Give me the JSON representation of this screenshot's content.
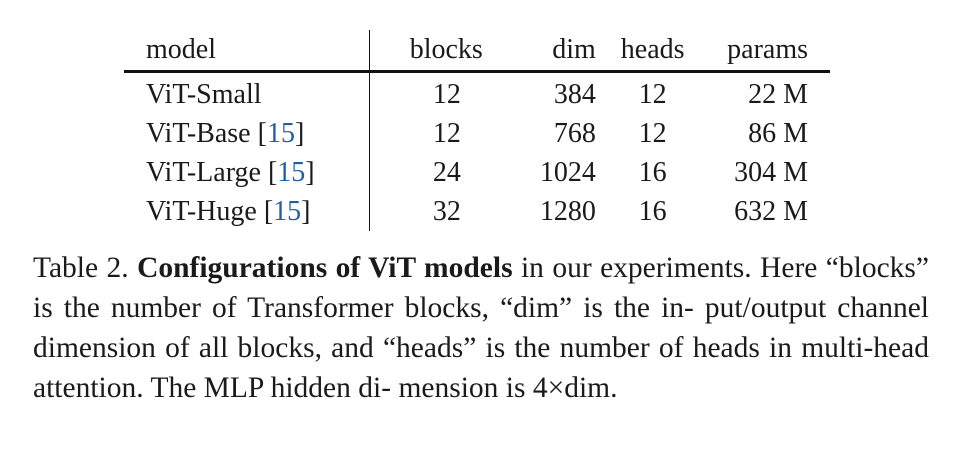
{
  "table": {
    "headers": [
      "model",
      "blocks",
      "dim",
      "heads",
      "params"
    ],
    "rows": [
      {
        "model": "ViT-Small",
        "cite": "",
        "blocks": "12",
        "dim": "384",
        "heads": "12",
        "params": "22 M"
      },
      {
        "model": "ViT-Base",
        "cite": "15",
        "blocks": "12",
        "dim": "768",
        "heads": "12",
        "params": "86 M"
      },
      {
        "model": "ViT-Large",
        "cite": "15",
        "blocks": "24",
        "dim": "1024",
        "heads": "16",
        "params": "304 M"
      },
      {
        "model": "ViT-Huge",
        "cite": "15",
        "blocks": "32",
        "dim": "1280",
        "heads": "16",
        "params": "632 M"
      }
    ]
  },
  "caption": {
    "label": "Table 2.",
    "title": "Configurations of ViT models",
    "text_line1_rest": "in our experiments. Here",
    "text_line2": "“blocks” is the number of Transformer blocks, “dim” is the in-",
    "text_line3": "put/output channel dimension of all blocks, and “heads” is the",
    "text_line4": "number of heads in multi-head attention.  The MLP hidden di-",
    "text_line5": "mension is 4×dim."
  },
  "colors": {
    "text": "#1a1a1a",
    "citation": "#1f5fa8",
    "rule": "#111111"
  }
}
